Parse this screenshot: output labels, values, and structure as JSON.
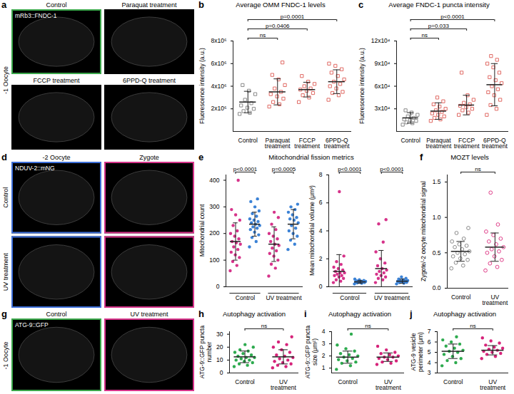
{
  "image_panels": [
    {
      "panel": "a",
      "channel_label": "mRb3::FNDC-1",
      "side_label": "-1 Oocyte",
      "images": [
        {
          "title": "Control",
          "color": "#3aa64a"
        },
        {
          "title": "Paraquat treatment"
        },
        {
          "title": "FCCP treatment"
        },
        {
          "title": "6PPD-Q treatment"
        }
      ]
    },
    {
      "panel": "d",
      "channel_label": "NDUV-2::mNG",
      "column_titles": [
        "-2 Oocyte",
        "Zygote"
      ],
      "row_labels": [
        "Control",
        "UV treatment"
      ],
      "colors": [
        "#3d6fd9",
        "#d6338a"
      ]
    },
    {
      "panel": "g",
      "channel_label": "ATG-9::GFP",
      "side_label": "-1 Oocyte",
      "images": [
        {
          "title": "Control",
          "color": "#3aa64a"
        },
        {
          "title": "UV treatment",
          "color": "#d6338a"
        }
      ]
    }
  ],
  "chart_data": [
    {
      "panel": "b",
      "type": "scatter",
      "title": "Average OMM FNDC-1 levels",
      "ylabel": "Fluorescence intensity (a.u.)",
      "categories": [
        "Control",
        "Paraquat treatment",
        "FCCP treatment",
        "6PPD-Q treatment"
      ],
      "colors": [
        "#8a8a8a",
        "#e06a64",
        "#e06a64",
        "#e06a64"
      ],
      "marker": "open square",
      "values": [
        [
          1550000.0,
          1650000.0,
          1800000.0,
          2000000.0,
          2100000.0,
          2300000.0,
          2500000.0,
          2800000.0,
          3300000.0,
          3600000.0,
          4100000.0
        ],
        [
          2200000.0,
          2400000.0,
          2600000.0,
          2900000.0,
          3100000.0,
          3300000.0,
          3500000.0,
          3800000.0,
          4100000.0,
          4600000.0,
          5000000.0,
          6100000.0
        ],
        [
          2600000.0,
          3000000.0,
          3200000.0,
          3400000.0,
          3600000.0,
          3700000.0,
          3800000.0,
          4000000.0,
          4200000.0,
          4400000.0,
          4900000.0
        ],
        [
          2800000.0,
          3200000.0,
          3400000.0,
          3500000.0,
          3800000.0,
          4000000.0,
          4200000.0,
          4400000.0,
          4600000.0,
          4900000.0,
          5200000.0,
          5500000.0,
          5800000.0,
          6000000.0
        ]
      ],
      "means": [
        2600000.0,
        3500000.0,
        3700000.0,
        4400000.0
      ],
      "sd": [
        950000.0,
        1150000.0,
        650000.0,
        1050000.0
      ],
      "ylim": [
        0,
        8000000.0
      ],
      "yticks": [
        {
          "value": 2000000.0,
          "label": "2x10⁶"
        },
        {
          "value": 4000000.0,
          "label": "4x10⁶"
        },
        {
          "value": 6000000.0,
          "label": "6x10⁶"
        },
        {
          "value": 8000000.0,
          "label": "8x10⁶"
        }
      ],
      "comparisons": [
        {
          "between": [
            "Control",
            "Paraquat treatment"
          ],
          "label": "ns"
        },
        {
          "between": [
            "Control",
            "FCCP treatment"
          ],
          "label": "p=0.0406"
        },
        {
          "between": [
            "Control",
            "6PPD-Q treatment"
          ],
          "label": "p=0.0001"
        }
      ]
    },
    {
      "panel": "c",
      "type": "scatter",
      "title": "Average FNDC-1 puncta intensity",
      "ylabel": "Fluorescence intensity (a.u.)",
      "categories": [
        "Control",
        "Paraquat treatment",
        "FCCP treatment",
        "6PPD-Q treatment"
      ],
      "colors": [
        "#8a8a8a",
        "#e06a64",
        "#e06a64",
        "#e06a64"
      ],
      "marker": "open square",
      "values": [
        [
          9000,
          11000,
          12000,
          14000,
          15000,
          16000,
          18000,
          20000,
          22000,
          25000,
          28000
        ],
        [
          14000,
          16000,
          18000,
          20000,
          22000,
          24000,
          26000,
          28000,
          30000,
          33000,
          36000,
          40000,
          45000
        ],
        [
          22000,
          25000,
          28000,
          30000,
          32000,
          34000,
          36000,
          38000,
          42000,
          48000,
          78000
        ],
        [
          22000,
          30000,
          35000,
          42000,
          48000,
          52000,
          56000,
          60000,
          64000,
          68000,
          72000,
          78000,
          85000,
          90000,
          95000,
          100000
        ]
      ],
      "means": [
        18000,
        27000,
        35000,
        62000
      ],
      "sd": [
        7000,
        11000,
        13000,
        28000
      ],
      "ylim": [
        0,
        120000
      ],
      "yticks": [
        {
          "value": 30000,
          "label": "3x10⁴"
        },
        {
          "value": 60000,
          "label": "6x10⁴"
        },
        {
          "value": 90000,
          "label": "9x10⁴"
        },
        {
          "value": 120000,
          "label": "12x10⁴"
        }
      ],
      "comparisons": [
        {
          "between": [
            "Control",
            "Paraquat treatment"
          ],
          "label": "ns"
        },
        {
          "between": [
            "Control",
            "FCCP treatment"
          ],
          "label": "p=0.033"
        },
        {
          "between": [
            "Control",
            "6PPD-Q treatment"
          ],
          "label": "p<0.0001"
        }
      ]
    },
    {
      "panel": "e",
      "type": "scatter",
      "title": "Mitochondrial fission metrics",
      "ylabel": "Mitochondrial count",
      "categories": [
        null,
        null,
        null,
        null
      ],
      "category_groups": [
        "Control",
        "Control",
        "UV treatment",
        "UV treatment"
      ],
      "colors": [
        "#d6338a",
        "#3b82d6",
        "#d6338a",
        "#3b82d6"
      ],
      "marker": "circle",
      "values": [
        [
          60,
          80,
          95,
          110,
          120,
          130,
          140,
          150,
          160,
          165,
          170,
          180,
          190,
          200,
          210,
          230,
          250,
          270,
          290,
          400
        ],
        [
          150,
          170,
          185,
          195,
          205,
          215,
          220,
          225,
          230,
          235,
          240,
          245,
          250,
          255,
          265,
          275,
          285,
          300,
          320,
          330
        ],
        [
          40,
          70,
          85,
          100,
          115,
          125,
          135,
          145,
          155,
          160,
          170,
          180,
          190,
          200,
          215,
          235,
          260,
          280
        ],
        [
          140,
          160,
          175,
          190,
          200,
          210,
          220,
          230,
          240,
          250,
          255,
          260,
          270,
          280,
          290,
          300,
          310
        ]
      ],
      "means": [
        170,
        235,
        160,
        235
      ],
      "sd": [
        70,
        45,
        65,
        55
      ],
      "ylim": [
        0,
        420
      ],
      "yticks": [
        0,
        100,
        200,
        300,
        400
      ],
      "comparisons": [
        {
          "between": [
            0,
            1
          ],
          "label": "p<0.0001"
        },
        {
          "between": [
            2,
            3
          ],
          "label": "p=0.0005"
        }
      ]
    },
    {
      "type": "scatter",
      "ylabel": "Mean mitochondrial volume (μm³)",
      "categories": [
        null,
        null,
        null,
        null
      ],
      "category_groups": [
        "Control",
        "Control",
        "UV treatment",
        "UV treatment"
      ],
      "colors": [
        "#d6338a",
        "#3b82d6",
        "#d6338a",
        "#3b82d6"
      ],
      "marker": "circle",
      "values": [
        [
          0.3,
          0.4,
          0.5,
          0.6,
          0.7,
          0.8,
          0.8,
          0.9,
          1.0,
          1.0,
          1.1,
          1.2,
          1.3,
          1.4,
          1.6,
          1.8,
          2.2,
          6.8
        ],
        [
          0.2,
          0.25,
          0.28,
          0.3,
          0.32,
          0.34,
          0.35,
          0.36,
          0.38,
          0.4,
          0.42,
          0.45,
          0.5,
          0.55
        ],
        [
          0.3,
          0.5,
          0.6,
          0.7,
          0.8,
          0.9,
          1.0,
          1.1,
          1.2,
          1.3,
          1.5,
          1.7,
          2.0,
          2.5,
          3.2,
          4.5,
          4.8
        ],
        [
          0.2,
          0.25,
          0.3,
          0.32,
          0.35,
          0.38,
          0.4,
          0.42,
          0.45,
          0.5,
          0.55,
          0.6,
          0.7
        ]
      ],
      "means": [
        1.1,
        0.35,
        1.3,
        0.4
      ],
      "sd": [
        1.2,
        0.1,
        1.3,
        0.15
      ],
      "ylim": [
        0,
        8
      ],
      "yticks": [
        0,
        2,
        4,
        6,
        8
      ],
      "comparisons": [
        {
          "between": [
            0,
            1
          ],
          "label": "p<0.0001"
        },
        {
          "between": [
            2,
            3
          ],
          "label": "p<0.0001"
        }
      ]
    },
    {
      "panel": "f",
      "type": "scatter",
      "title": "MOZT levels",
      "ylabel": "Zygote/-2 oocyte mitochondrial signal",
      "categories": [
        "Control",
        "UV treatment"
      ],
      "colors": [
        "#8a8a8a",
        "#e0408a"
      ],
      "marker": "open circle",
      "values": [
        [
          0.28,
          0.32,
          0.36,
          0.4,
          0.42,
          0.45,
          0.48,
          0.5,
          0.52,
          0.55,
          0.58,
          0.6,
          0.62,
          0.66,
          0.7,
          0.78,
          0.85
        ],
        [
          0.25,
          0.3,
          0.35,
          0.4,
          0.45,
          0.5,
          0.52,
          0.55,
          0.58,
          0.62,
          0.66,
          0.7,
          0.75,
          0.8,
          0.9,
          1.35
        ]
      ],
      "means": [
        0.52,
        0.58
      ],
      "sd": [
        0.14,
        0.2
      ],
      "ylim": [
        0,
        1.6
      ],
      "yticks": [
        {
          "value": 0,
          "label": "0.0"
        },
        0.5,
        {
          "value": 1,
          "label": "1.0"
        },
        1.5
      ],
      "comparisons": [
        {
          "between": [
            "Control",
            "UV treatment"
          ],
          "label": "ns"
        }
      ]
    },
    {
      "panel": "h",
      "type": "scatter",
      "title": "Autophagy activation",
      "ylabel": "ATG-9::GFP puncta number",
      "categories": [
        "Control",
        "UV treatment"
      ],
      "colors": [
        "#2eab4f",
        "#d6237a"
      ],
      "marker": "circle",
      "values": [
        [
          5,
          6,
          7,
          8,
          9,
          10,
          10,
          11,
          12,
          12,
          13,
          14,
          15,
          16,
          17,
          18,
          20,
          22
        ],
        [
          4,
          5,
          6,
          7,
          8,
          9,
          10,
          11,
          12,
          13,
          14,
          16,
          18,
          20,
          22,
          24,
          28
        ]
      ],
      "means": [
        12.5,
        12.5
      ],
      "sd": [
        4.5,
        5.5
      ],
      "ylim": [
        0,
        32
      ],
      "yticks": [
        0,
        10,
        20,
        30
      ],
      "comparisons": [
        {
          "between": [
            "Control",
            "UV treatment"
          ],
          "label": "ns"
        }
      ]
    },
    {
      "panel": "i",
      "type": "scatter",
      "title": "Autophagy activation",
      "ylabel": "ATG-9::GFP puncta size (μm²)",
      "categories": [
        "Control",
        "UV treatment"
      ],
      "colors": [
        "#2eab4f",
        "#d6237a"
      ],
      "marker": "circle",
      "values": [
        [
          0.9,
          1.2,
          1.4,
          1.5,
          1.6,
          1.7,
          1.8,
          1.9,
          2.0,
          2.1,
          2.2,
          2.4,
          2.6,
          2.9,
          3.8
        ],
        [
          1.3,
          1.4,
          1.5,
          1.6,
          1.7,
          1.8,
          1.9,
          1.9,
          2.0,
          2.1,
          2.2,
          2.3,
          2.5,
          2.8
        ]
      ],
      "means": [
        1.9,
        1.9
      ],
      "sd": [
        0.5,
        0.35
      ],
      "ylim": [
        0.6,
        4
      ],
      "yticks": [
        1,
        2,
        3,
        4
      ],
      "comparisons": [
        {
          "between": [
            "Control",
            "UV treatment"
          ],
          "label": "ns"
        }
      ]
    },
    {
      "panel": "j",
      "type": "scatter",
      "title": "Autophagy activation",
      "ylabel": "ATG-9 vesicle perimeter (μm)",
      "categories": [
        "Control",
        "UV treatment"
      ],
      "colors": [
        "#2eab4f",
        "#d6237a"
      ],
      "marker": "circle",
      "values": [
        [
          3.7,
          4.0,
          4.2,
          4.4,
          4.6,
          4.8,
          5.0,
          5.1,
          5.2,
          5.4,
          5.6,
          5.8,
          6.0,
          6.2,
          6.5
        ],
        [
          4.4,
          4.6,
          4.8,
          4.9,
          5.0,
          5.1,
          5.2,
          5.3,
          5.4,
          5.5,
          5.7,
          5.9,
          6.1,
          6.4
        ]
      ],
      "means": [
        5.1,
        5.2
      ],
      "sd": [
        0.7,
        0.45
      ],
      "ylim": [
        3,
        7
      ],
      "yticks": [
        3,
        4,
        5,
        6,
        7
      ],
      "comparisons": [
        {
          "between": [
            "Control",
            "UV treatment"
          ],
          "label": "ns"
        }
      ]
    }
  ]
}
